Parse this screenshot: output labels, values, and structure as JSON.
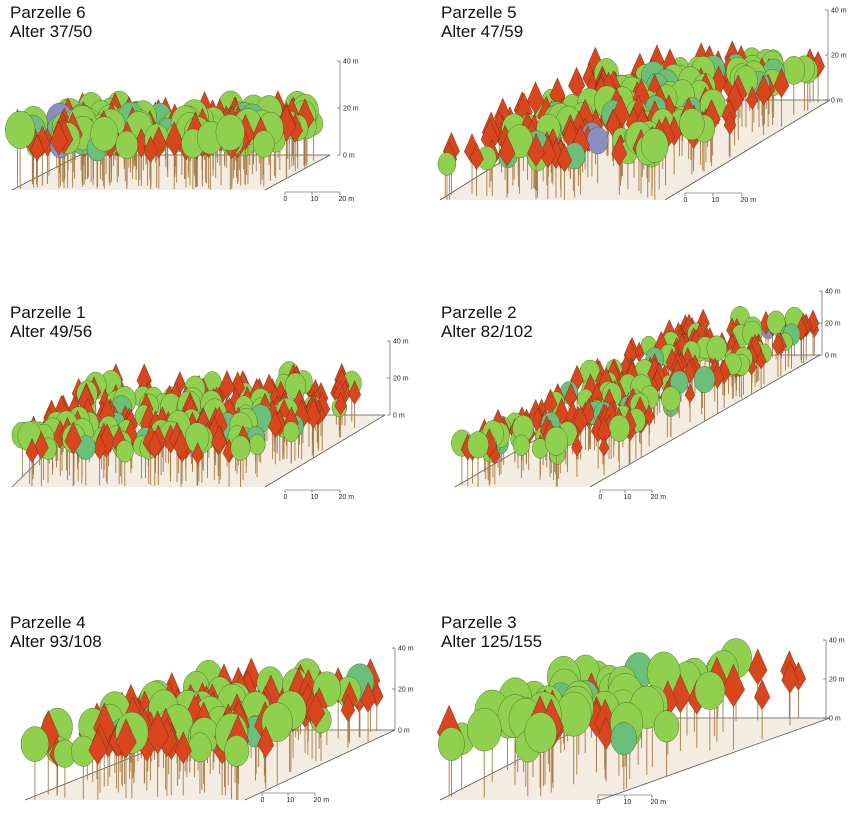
{
  "panels": [
    {
      "title": "Parzelle 6",
      "age": "Alter 37/50",
      "height_labels": [
        "40 m",
        "20 m",
        "0 m"
      ],
      "scale_labels": [
        "0",
        "10",
        "20 m"
      ]
    },
    {
      "title": "Parzelle 5",
      "age": "Alter 47/59",
      "height_labels": [
        "40 m",
        "20 m",
        "0 m"
      ],
      "scale_labels": [
        "0",
        "10",
        "20 m"
      ]
    },
    {
      "title": "Parzelle 1",
      "age": "Alter 49/56",
      "height_labels": [
        "40 m",
        "20 m",
        "0 m"
      ],
      "scale_labels": [
        "0",
        "10",
        "20 m"
      ]
    },
    {
      "title": "Parzelle 2",
      "age": "Alter 82/102",
      "height_labels": [
        "40 m",
        "20 m",
        "0 m"
      ],
      "scale_labels": [
        "0",
        "10",
        "20 m"
      ]
    },
    {
      "title": "Parzelle 4",
      "age": "Alter 93/108",
      "height_labels": [
        "40 m",
        "20 m",
        "0 m"
      ],
      "scale_labels": [
        "0",
        "10",
        "20 m"
      ]
    },
    {
      "title": "Parzelle 3",
      "age": "Alter 125/155",
      "height_labels": [
        "40 m",
        "20 m",
        "0 m"
      ],
      "scale_labels": [
        "0",
        "10",
        "20 m"
      ]
    }
  ]
}
